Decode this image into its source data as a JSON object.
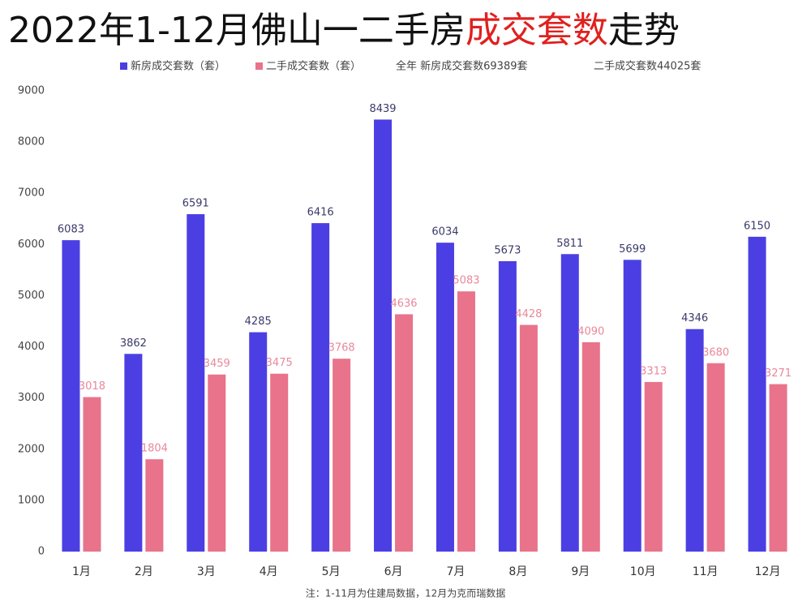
{
  "chart_data": {
    "type": "bar",
    "title": [
      {
        "text": "2022年1-12月佛山一二手房",
        "color": "#111111"
      },
      {
        "text": "成交套数",
        "color": "#e0201e"
      },
      {
        "text": "走势",
        "color": "#111111"
      }
    ],
    "annotations": [
      "全年 新房成交套数69389套",
      "二手成交套数44025套"
    ],
    "note": "注：1-11月为住建局数据，12月为克而瑞数据",
    "categories": [
      "1月",
      "2月",
      "3月",
      "4月",
      "5月",
      "6月",
      "7月",
      "8月",
      "9月",
      "10月",
      "11月",
      "12月"
    ],
    "series": [
      {
        "name": "新房成交套数（套）",
        "color": "#4b3fe3",
        "label_color": "#3a3a6a",
        "values": [
          6083,
          3862,
          6591,
          4285,
          6416,
          8439,
          6034,
          5673,
          5811,
          5699,
          4346,
          6150
        ]
      },
      {
        "name": "二手成交套数（套）",
        "color": "#e8738b",
        "label_color": "#e8889b",
        "values": [
          3018,
          1804,
          3459,
          3475,
          3768,
          4636,
          5083,
          4428,
          4090,
          3313,
          3680,
          3271
        ]
      }
    ],
    "ylim": [
      0,
      9000
    ],
    "yticks": [
      0,
      1000,
      2000,
      3000,
      4000,
      5000,
      6000,
      7000,
      8000,
      9000
    ],
    "grid": false
  }
}
